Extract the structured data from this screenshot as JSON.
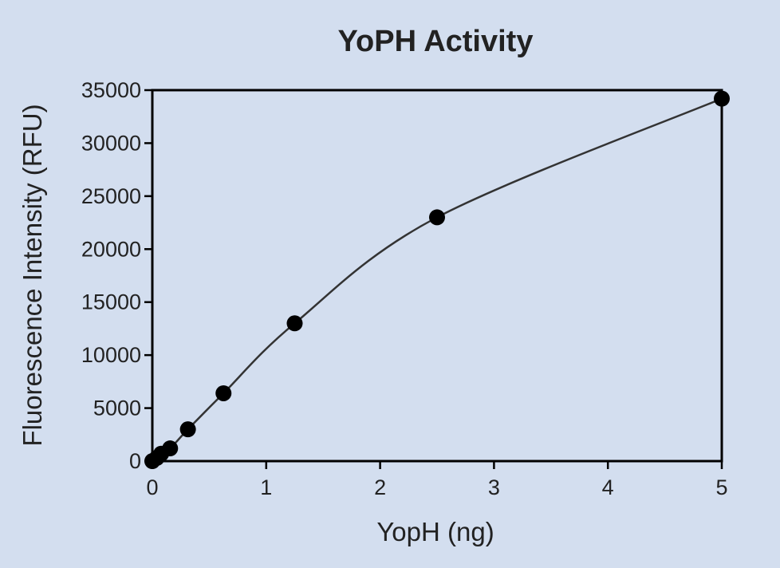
{
  "chart_data": {
    "type": "scatter",
    "title": "YoPH Activity",
    "xlabel": "YopH (ng)",
    "ylabel": "Fluorescence Intensity (RFU)",
    "xlim": [
      0,
      5
    ],
    "ylim": [
      0,
      35000
    ],
    "x_ticks": [
      0,
      1,
      2,
      3,
      4,
      5
    ],
    "y_ticks": [
      0,
      5000,
      10000,
      15000,
      20000,
      25000,
      30000,
      35000
    ],
    "grid": false,
    "fit_line": true,
    "series": [
      {
        "x": [
          0,
          0.039,
          0.078,
          0.156,
          0.3125,
          0.625,
          1.25,
          2.5,
          5.0
        ],
        "y": [
          0,
          300,
          700,
          1200,
          3000,
          6400,
          13000,
          23000,
          34200
        ]
      }
    ],
    "colors": {
      "background": "#d3deef",
      "points": "#000000",
      "line": "#333333"
    }
  }
}
